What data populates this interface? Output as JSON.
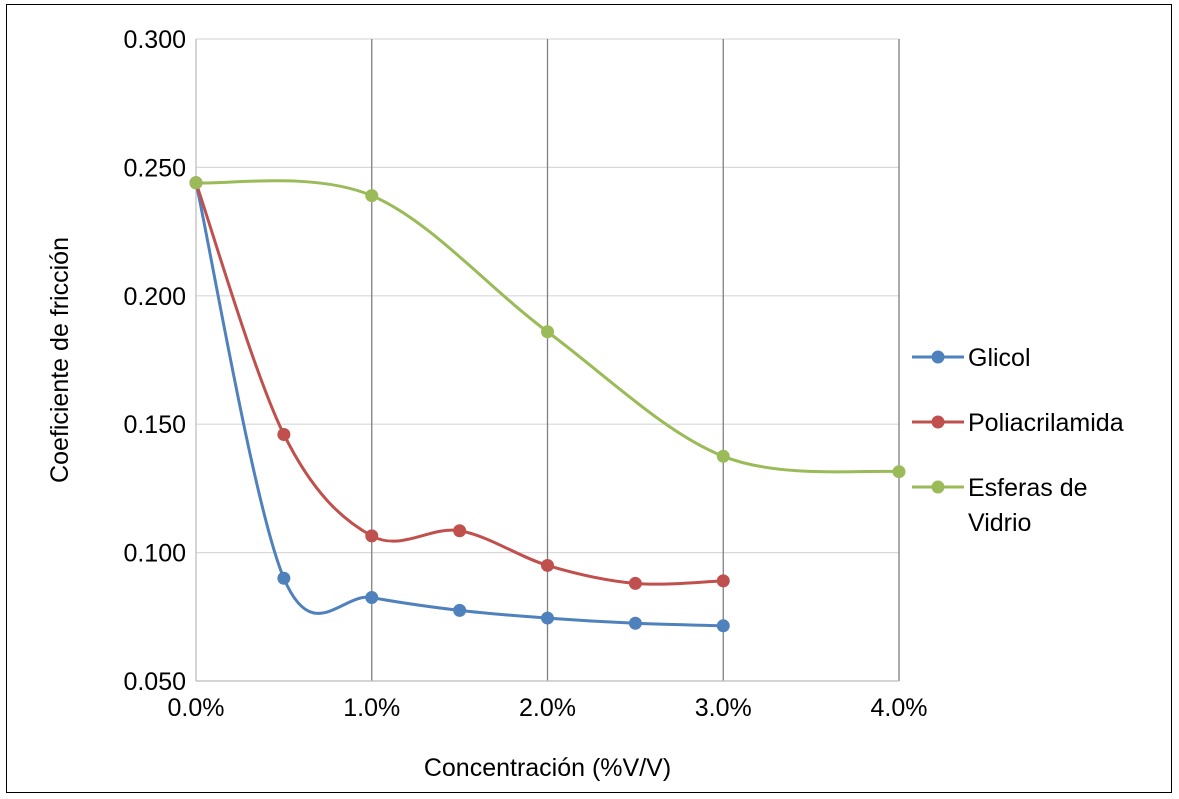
{
  "chart_data": {
    "type": "line",
    "title": "",
    "xlabel": "Concentración (%V/V)",
    "ylabel": "Coeficiente de fricción",
    "xlim": [
      0,
      0.04
    ],
    "ylim": [
      0.05,
      0.3
    ],
    "x_ticks": [
      {
        "value": 0.0,
        "label": "0.0%"
      },
      {
        "value": 0.01,
        "label": "1.0%"
      },
      {
        "value": 0.02,
        "label": "2.0%"
      },
      {
        "value": 0.03,
        "label": "3.0%"
      },
      {
        "value": 0.04,
        "label": "4.0%"
      }
    ],
    "y_ticks": [
      {
        "value": 0.05,
        "label": "0.050"
      },
      {
        "value": 0.1,
        "label": "0.100"
      },
      {
        "value": 0.15,
        "label": "0.150"
      },
      {
        "value": 0.2,
        "label": "0.200"
      },
      {
        "value": 0.25,
        "label": "0.250"
      },
      {
        "value": 0.3,
        "label": "0.300"
      }
    ],
    "grid": {
      "horizontal": true,
      "vertical": true
    },
    "legend_position": "right",
    "smooth": true,
    "series": [
      {
        "name": "Glicol",
        "color": "#4f81bd",
        "points": [
          [
            0.0,
            0.244
          ],
          [
            0.005,
            0.09
          ],
          [
            0.01,
            0.0825
          ],
          [
            0.015,
            0.0775
          ],
          [
            0.02,
            0.0745
          ],
          [
            0.025,
            0.0725
          ],
          [
            0.03,
            0.0715
          ]
        ]
      },
      {
        "name": "Poliacrilamida",
        "color": "#c0504d",
        "points": [
          [
            0.0,
            0.244
          ],
          [
            0.005,
            0.146
          ],
          [
            0.01,
            0.1065
          ],
          [
            0.015,
            0.1085
          ],
          [
            0.02,
            0.095
          ],
          [
            0.025,
            0.088
          ],
          [
            0.03,
            0.089
          ]
        ]
      },
      {
        "name": "Esferas de Vidrio",
        "legend_lines": [
          "Esferas de",
          "Vidrio"
        ],
        "color": "#9bbb59",
        "points": [
          [
            0.0,
            0.244
          ],
          [
            0.01,
            0.239
          ],
          [
            0.02,
            0.186
          ],
          [
            0.03,
            0.1375
          ],
          [
            0.04,
            0.1315
          ]
        ]
      }
    ]
  }
}
